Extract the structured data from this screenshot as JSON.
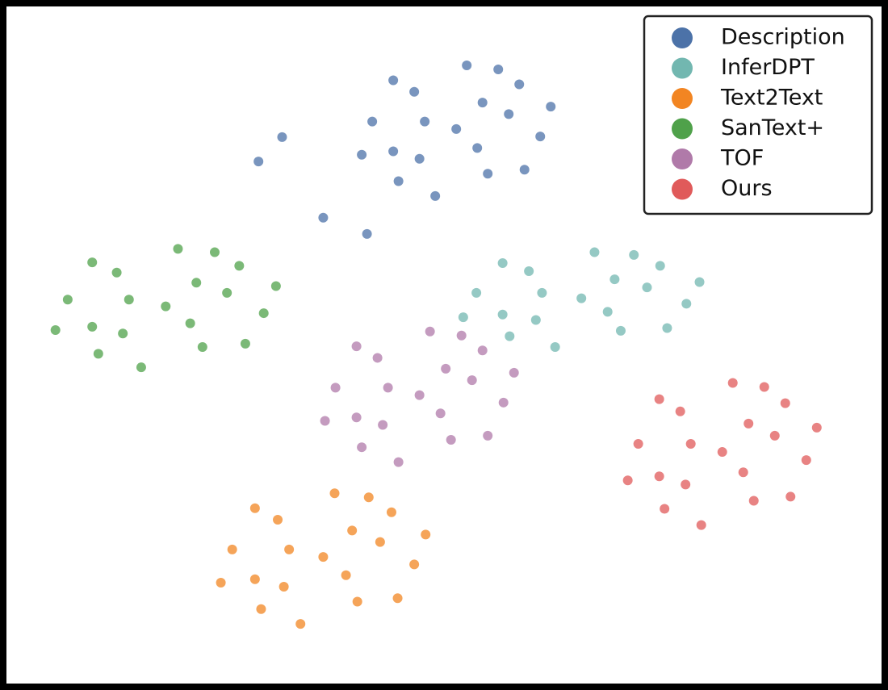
{
  "chart_data": {
    "type": "scatter",
    "legend": "upper right",
    "xlim": [
      0,
      100
    ],
    "ylim": [
      0,
      100
    ],
    "series": [
      {
        "name": "Description",
        "color": "#4c72a8",
        "x": [
          51.4,
          57.4,
          46.6,
          44.2,
          55.0,
          61.0,
          41.8,
          52.6,
          49.0,
          58.6,
          44.2,
          59.2,
          44.8,
          54.4,
          47.8,
          53.8,
          62.2,
          40.6,
          56.2,
          47.2,
          31.5,
          36.2,
          41.2,
          28.8
        ],
        "y": [
          81.9,
          84.1,
          87.4,
          78.6,
          75.3,
          80.8,
          83.0,
          91.3,
          72.0,
          88.5,
          89.1,
          75.9,
          74.2,
          85.8,
          83.0,
          79.1,
          85.2,
          78.1,
          90.7,
          77.5,
          80.7,
          68.8,
          66.4,
          77.1
        ]
      },
      {
        "name": "InferDPT",
        "color": "#72b7b0",
        "x": [
          65.7,
          73.2,
          59.7,
          56.7,
          70.2,
          77.7,
          53.7,
          67.2,
          62.7,
          74.7,
          56.7,
          75.5,
          57.5,
          69.5,
          61.2,
          68.7,
          79.2,
          52.2,
          71.7,
          60.5
        ],
        "y": [
          56.9,
          58.5,
          60.9,
          54.5,
          52.1,
          56.1,
          57.7,
          63.7,
          49.7,
          61.7,
          62.1,
          52.5,
          51.3,
          59.7,
          57.7,
          54.9,
          59.3,
          54.1,
          63.3,
          53.7
        ]
      },
      {
        "name": "Text2Text",
        "color": "#f28522",
        "x": [
          36.2,
          42.7,
          31.0,
          28.4,
          40.1,
          46.6,
          25.8,
          37.5,
          33.6,
          44.0,
          28.4,
          44.7,
          29.1,
          39.5,
          32.3,
          38.8,
          47.9,
          24.5,
          41.4,
          31.7
        ],
        "y": [
          18.7,
          20.9,
          24.2,
          15.4,
          12.1,
          17.6,
          19.8,
          28.1,
          8.8,
          25.3,
          25.9,
          12.6,
          11.0,
          22.6,
          19.8,
          16.0,
          22.0,
          14.9,
          27.5,
          14.3
        ]
      },
      {
        "name": "SanText+",
        "color": "#4fa14a",
        "x": [
          18.2,
          25.2,
          12.6,
          9.8,
          22.4,
          29.4,
          7.0,
          19.6,
          15.4,
          26.6,
          9.8,
          27.3,
          10.5,
          21.7,
          14.0,
          21.0,
          30.8,
          5.6,
          23.8,
          13.3
        ],
        "y": [
          55.7,
          57.7,
          60.7,
          52.7,
          49.7,
          54.7,
          56.7,
          64.2,
          46.7,
          61.7,
          62.2,
          50.2,
          48.7,
          59.2,
          56.7,
          53.2,
          58.7,
          52.2,
          63.7,
          51.7
        ]
      },
      {
        "name": "TOF",
        "color": "#b07aa9",
        "x": [
          47.2,
          53.2,
          42.4,
          40.0,
          50.8,
          56.8,
          37.6,
          48.4,
          44.8,
          54.4,
          40.0,
          55.0,
          40.6,
          50.2,
          43.6,
          49.6,
          58.0,
          36.4,
          52.0,
          43.0
        ],
        "y": [
          42.6,
          44.8,
          48.1,
          39.3,
          36.0,
          41.5,
          43.7,
          52.0,
          32.7,
          49.2,
          49.8,
          36.6,
          34.9,
          46.5,
          43.7,
          39.9,
          45.9,
          38.8,
          51.4,
          38.2
        ]
      },
      {
        "name": "Ours",
        "color": "#e05a5a",
        "x": [
          81.8,
          87.8,
          77.0,
          74.6,
          85.4,
          91.4,
          72.2,
          83.0,
          79.4,
          89.0,
          74.6,
          89.6,
          75.2,
          84.8,
          78.2,
          84.2,
          92.6,
          71.0,
          86.6,
          77.6
        ],
        "y": [
          34.2,
          36.6,
          40.2,
          30.6,
          27.0,
          33.0,
          35.4,
          44.4,
          23.4,
          41.4,
          42.0,
          27.6,
          25.8,
          38.4,
          35.4,
          31.2,
          37.8,
          30.0,
          43.8,
          29.4
        ]
      }
    ]
  }
}
